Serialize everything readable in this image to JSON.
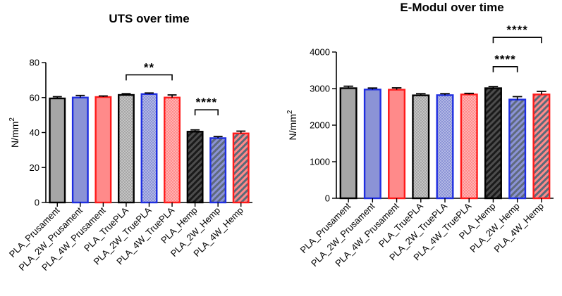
{
  "chart_data": [
    {
      "type": "bar",
      "title": "UTS over time",
      "ylabel": "N/mm",
      "ylabel_sup": "2",
      "ylim": [
        0,
        80
      ],
      "yticks": [
        0,
        20,
        40,
        60,
        80
      ],
      "categories": [
        "PLA_Prusament",
        "PLA_2W_Prusament",
        "PLA_4W_Prusament",
        "PLA_TruePLA",
        "PLA_2W_TruePLA",
        "PLA_4W_TruePLA",
        "PLA_Hemp",
        "PLA_2W_Hemp",
        "PLA_4W_Hemp"
      ],
      "values": [
        59.5,
        60.0,
        60.3,
        61.5,
        62.0,
        60.0,
        40.5,
        36.8,
        39.5
      ],
      "errors": [
        1.0,
        1.2,
        0.6,
        0.7,
        0.6,
        1.5,
        1.0,
        0.9,
        1.3
      ],
      "fill_colors": [
        "#a6a6a6",
        "#8b93d6",
        "#ff8a8a",
        "#a6a6a6",
        "#8b93d6",
        "#ff8a8a",
        "#4d4d4d",
        "#8b93d6",
        "#ff8a8a"
      ],
      "edge_colors": [
        "#000000",
        "#1f2ee0",
        "#ff1a1a",
        "#000000",
        "#1f2ee0",
        "#ff1a1a",
        "#000000",
        "#1f2ee0",
        "#ff1a1a"
      ],
      "patterns": [
        "solid",
        "solid",
        "solid",
        "dots",
        "dots",
        "dots",
        "hatch",
        "hatch",
        "hatch"
      ],
      "significance": [
        {
          "from": 3,
          "to": 5,
          "y": 73,
          "label": "**"
        },
        {
          "from": 6,
          "to": 7,
          "y": 53,
          "label": "****"
        }
      ]
    },
    {
      "type": "bar",
      "title": "E-Modul over time",
      "ylabel": "N/mm",
      "ylabel_sup": "2",
      "ylim": [
        0,
        4000
      ],
      "yticks": [
        0,
        1000,
        2000,
        3000,
        4000
      ],
      "categories": [
        "PLA_Prusament",
        "PLA_2W_Prusament",
        "PLA_4W_Prusament",
        "PLA_TruePLA",
        "PLA_2W_TruePLA",
        "PLA_4W_TruePLA",
        "PLA_Hemp",
        "PLA_2W_Hemp",
        "PLA_4W_Hemp"
      ],
      "values": [
        3010,
        2975,
        2970,
        2815,
        2820,
        2840,
        3010,
        2700,
        2840
      ],
      "errors": [
        55,
        40,
        50,
        45,
        40,
        30,
        45,
        80,
        85
      ],
      "fill_colors": [
        "#a6a6a6",
        "#8b93d6",
        "#ff8a8a",
        "#a6a6a6",
        "#8b93d6",
        "#ff8a8a",
        "#4d4d4d",
        "#8b93d6",
        "#ff8a8a"
      ],
      "edge_colors": [
        "#000000",
        "#1f2ee0",
        "#ff1a1a",
        "#000000",
        "#1f2ee0",
        "#ff1a1a",
        "#000000",
        "#1f2ee0",
        "#ff1a1a"
      ],
      "patterns": [
        "solid",
        "solid",
        "solid",
        "dots",
        "dots",
        "dots",
        "hatch",
        "hatch",
        "hatch"
      ],
      "significance": [
        {
          "from": 6,
          "to": 7,
          "y": 3600,
          "label": "****"
        },
        {
          "from": 6,
          "to": 8,
          "y": 4400,
          "label": "****"
        }
      ]
    }
  ]
}
